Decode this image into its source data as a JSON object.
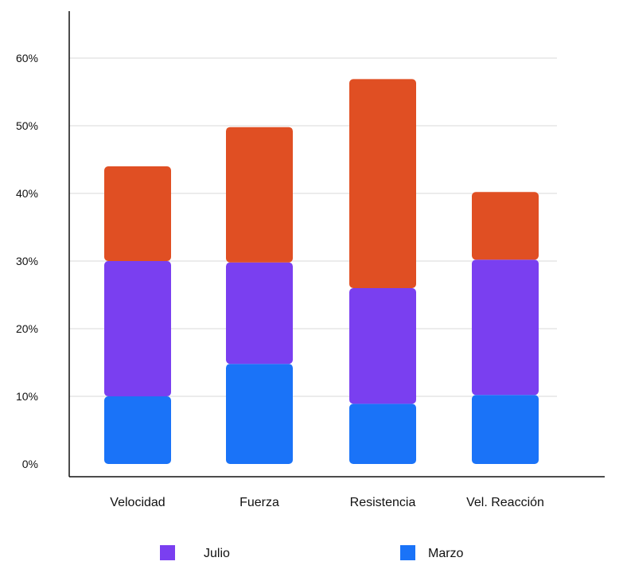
{
  "chart_data": {
    "type": "bar",
    "stacked": true,
    "categories": [
      "Velocidad",
      "Fuerza",
      "Resistencia",
      "Vel. Reacción"
    ],
    "series": [
      {
        "name": "Marzo",
        "values": [
          10,
          14.8,
          8.9,
          10.2
        ],
        "color": "#1A73F8"
      },
      {
        "name": "Julio",
        "values": [
          20,
          15,
          17.1,
          20
        ],
        "color": "#7A3FF0"
      },
      {
        "name": "",
        "values": [
          14,
          20,
          30.9,
          10
        ],
        "color": "#E04F23"
      }
    ],
    "yticks": [
      "0%",
      "10%",
      "20%",
      "30%",
      "40%",
      "50%",
      "60%"
    ],
    "ylim": [
      0,
      60
    ],
    "grid": true,
    "legend": {
      "placement": "bottom",
      "entries": [
        "Julio",
        "Marzo"
      ]
    }
  }
}
